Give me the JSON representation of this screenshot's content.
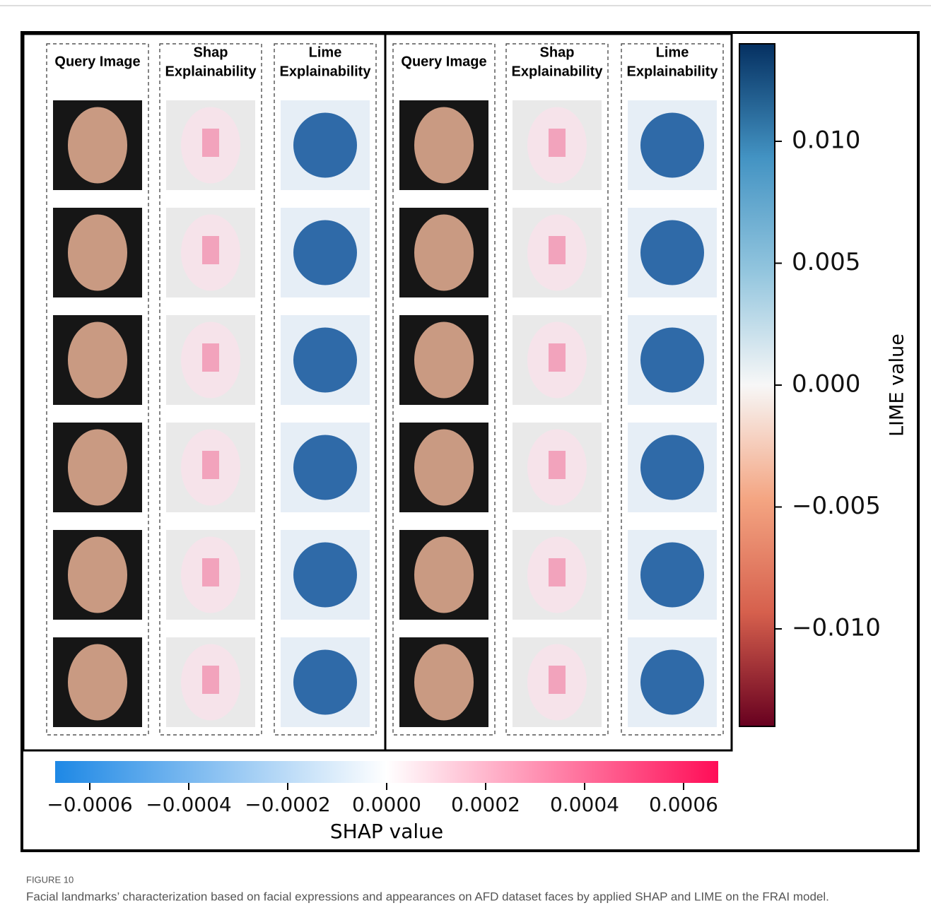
{
  "figure": {
    "label": "FIGURE 10",
    "caption": "Facial landmarks’ characterization based on facial expressions and appearances on AFD dataset faces by applied SHAP and LIME on the FRAI model."
  },
  "panels": [
    {
      "columns": [
        {
          "title": [
            "Query Image"
          ]
        },
        {
          "title": [
            "Shap",
            "Explainability"
          ]
        },
        {
          "title": [
            "Lime",
            "Explainability"
          ]
        }
      ]
    },
    {
      "columns": [
        {
          "title": [
            "Query Image"
          ]
        },
        {
          "title": [
            "Shap",
            "Explainability"
          ]
        },
        {
          "title": [
            "Lime",
            "Explainability"
          ]
        }
      ]
    }
  ],
  "lime_colorbar": {
    "label": "LIME value",
    "lim": [
      -0.014,
      0.014
    ],
    "colors": [
      "#67001f",
      "#d6604d",
      "#f4a582",
      "#f7f7f7",
      "#92c5de",
      "#4393c3",
      "#053061"
    ],
    "ticks": [
      {
        "value": 0.01,
        "label": "0.010"
      },
      {
        "value": 0.005,
        "label": "0.005"
      },
      {
        "value": 0,
        "label": "0.000"
      },
      {
        "value": -0.005,
        "label": "−0.005"
      },
      {
        "value": -0.01,
        "label": "−0.010"
      }
    ]
  },
  "shap_colorbar": {
    "label": "SHAP value",
    "lim": [
      -0.00067,
      0.00067
    ],
    "colors": [
      "#1e88e5",
      "#ffffff",
      "#ff0d57"
    ],
    "ticks": [
      {
        "value": -0.0006,
        "label": "−0.0006"
      },
      {
        "value": -0.0004,
        "label": "−0.0004"
      },
      {
        "value": -0.0002,
        "label": "−0.0002"
      },
      {
        "value": 0,
        "label": "0.0000"
      },
      {
        "value": 0.0002,
        "label": "0.0002"
      },
      {
        "value": 0.0004,
        "label": "0.0004"
      },
      {
        "value": 0.0006,
        "label": "0.0006"
      }
    ]
  }
}
